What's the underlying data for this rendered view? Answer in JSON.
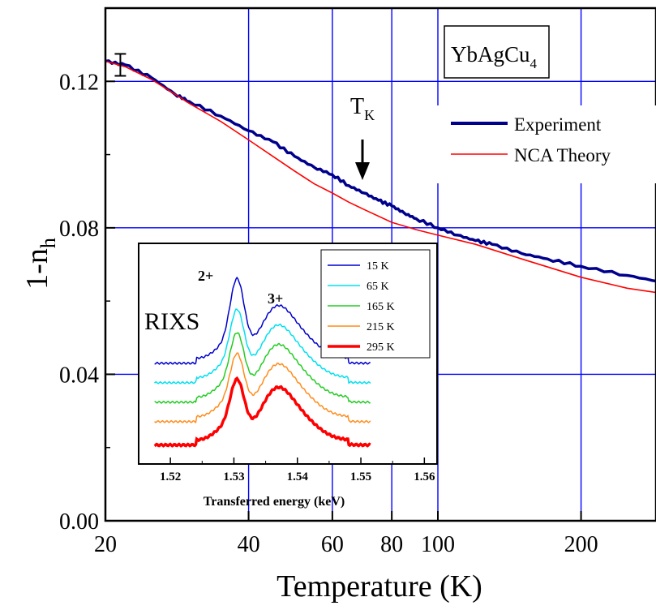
{
  "chart_data": [
    {
      "type": "line",
      "xlabel": "Temperature (K)",
      "ylabel": "1-n",
      "ylabel_sub": "h",
      "x_scale": "log",
      "xlim": [
        20,
        300
      ],
      "ylim": [
        0.0,
        0.14
      ],
      "x_ticks": [
        20,
        40,
        60,
        80,
        100,
        200
      ],
      "x_tick_labels": [
        "20",
        "40",
        "60",
        "80",
        "100",
        "200"
      ],
      "y_ticks": [
        0.0,
        0.04,
        0.08,
        0.12
      ],
      "y_tick_labels": [
        "0.00",
        "0.04",
        "0.08",
        "0.12"
      ],
      "x_gridlines": [
        40,
        60,
        80,
        100,
        200
      ],
      "y_gridlines": [
        0.04,
        0.08,
        0.12
      ],
      "grid": true,
      "legend_position": "top-right",
      "colors": {
        "grid": "#0000ff",
        "experiment": "#00008b",
        "theory": "#ff0000"
      },
      "series": [
        {
          "name": "Experiment",
          "color": "#00008b",
          "x": [
            20,
            22,
            25,
            28,
            30,
            35,
            40,
            45,
            50,
            55,
            60,
            65,
            70,
            75,
            80,
            85,
            90,
            100,
            110,
            120,
            130,
            150,
            170,
            200,
            250,
            300
          ],
          "y": [
            0.1255,
            0.1245,
            0.121,
            0.1165,
            0.1145,
            0.1105,
            0.1065,
            0.1035,
            0.0995,
            0.0965,
            0.0945,
            0.0915,
            0.0895,
            0.0875,
            0.086,
            0.084,
            0.0825,
            0.08,
            0.078,
            0.0765,
            0.0755,
            0.073,
            0.0715,
            0.0695,
            0.067,
            0.065
          ]
        },
        {
          "name": "NCA Theory",
          "color": "#ff0000",
          "x": [
            20,
            22,
            25,
            28,
            30,
            35,
            40,
            45,
            50,
            55,
            60,
            65,
            70,
            80,
            90,
            100,
            120,
            150,
            200,
            250,
            300
          ],
          "y": [
            0.1255,
            0.124,
            0.1205,
            0.1165,
            0.114,
            0.109,
            0.104,
            0.0995,
            0.0955,
            0.092,
            0.0895,
            0.087,
            0.085,
            0.0815,
            0.0795,
            0.078,
            0.0755,
            0.0715,
            0.0665,
            0.0635,
            0.062
          ]
        }
      ],
      "error_bar": {
        "x": 21.5,
        "y": 0.1245,
        "err": 0.003
      },
      "annotations": [
        {
          "id": "tk",
          "text": "T",
          "sub": "K",
          "x": 68
        },
        {
          "id": "material",
          "text": "YbAgCu",
          "sub": "4"
        }
      ]
    },
    {
      "type": "line",
      "xlabel": "Transferred energy (keV)",
      "xlim": [
        1.515,
        1.562
      ],
      "x_ticks": [
        1.52,
        1.53,
        1.54,
        1.55,
        1.56
      ],
      "x_tick_labels": [
        "1.52",
        "1.53",
        "1.54",
        "1.55",
        "1.56"
      ],
      "labels": [
        "RIXS",
        "2+",
        "3+"
      ],
      "legend_position": "top-right",
      "series": [
        {
          "name": "15 K",
          "color": "#0000cd",
          "offset": 0.168,
          "amp": 1.0
        },
        {
          "name": "65 K",
          "color": "#00e0f0",
          "offset": 0.128,
          "amp": 0.85
        },
        {
          "name": "165 K",
          "color": "#22cc22",
          "offset": 0.088,
          "amp": 0.8
        },
        {
          "name": "215 K",
          "color": "#ff8c1a",
          "offset": 0.048,
          "amp": 0.78
        },
        {
          "name": "295 K",
          "color": "#ff0000",
          "offset": 0.0,
          "amp": 0.75
        }
      ]
    }
  ]
}
